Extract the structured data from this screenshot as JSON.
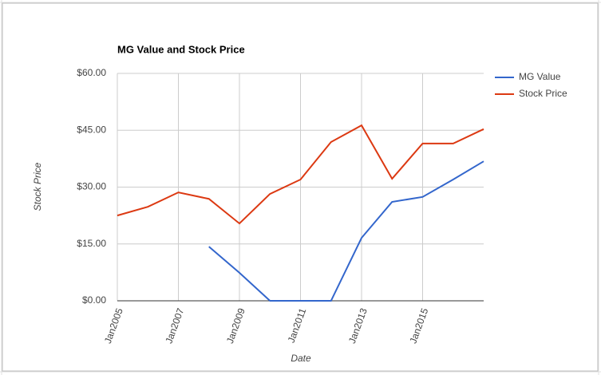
{
  "chart_data": {
    "type": "line",
    "title": "MG Value and Stock Price",
    "x_label": "Date",
    "y_label": "Stock Price",
    "x": [
      2005,
      2006,
      2007,
      2008,
      2009,
      2010,
      2011,
      2012,
      2013,
      2014,
      2015,
      2016,
      2017
    ],
    "series": [
      {
        "name": "MG Value",
        "color": "#3366cc",
        "values": [
          null,
          null,
          null,
          14.3,
          7.4,
          0,
          0,
          0,
          16.6,
          26.1,
          27.4,
          32,
          36.8
        ]
      },
      {
        "name": "Stock Price",
        "color": "#dc3912",
        "values": [
          22.5,
          24.8,
          28.6,
          26.9,
          20.4,
          28.2,
          32,
          41.9,
          46.3,
          32.2,
          41.5,
          41.5,
          45.3
        ]
      }
    ],
    "xlim": [
      2005,
      2017
    ],
    "xticks": [
      {
        "value": 2005,
        "label": "Jan2005"
      },
      {
        "value": 2007,
        "label": "Jan2007"
      },
      {
        "value": 2009,
        "label": "Jan2009"
      },
      {
        "value": 2011,
        "label": "Jan2011"
      },
      {
        "value": 2013,
        "label": "Jan2013"
      },
      {
        "value": 2015,
        "label": "Jan2015"
      }
    ],
    "ylim": [
      0,
      60
    ],
    "yticks": [
      {
        "value": 0,
        "label": "$0.00"
      },
      {
        "value": 15,
        "label": "$15.00"
      },
      {
        "value": 30,
        "label": "$30.00"
      },
      {
        "value": 45,
        "label": "$45.00"
      },
      {
        "value": 60,
        "label": "$60.00"
      }
    ],
    "grid": true,
    "legend": "right"
  }
}
